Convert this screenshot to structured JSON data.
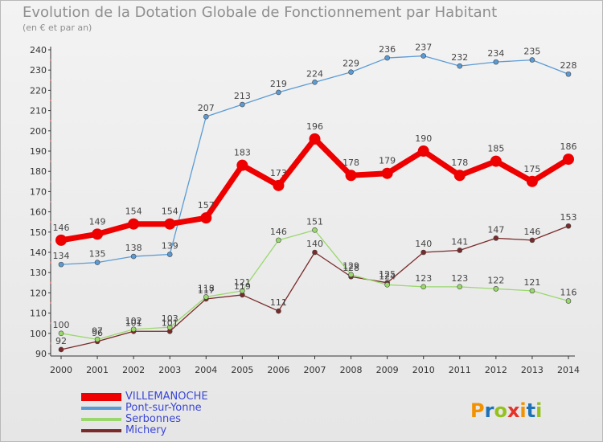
{
  "header": {
    "title": "Evolution de la Dotation Globale de Fonctionnement par Habitant",
    "subtitle": "(en € et par an)"
  },
  "logo": {
    "text": "Proxiti",
    "colors": [
      "#f39200",
      "#1d71b8",
      "#95c11f",
      "#e6332a"
    ]
  },
  "chart_data": {
    "type": "line",
    "x": [
      2000,
      2001,
      2002,
      2003,
      2004,
      2005,
      2006,
      2007,
      2008,
      2009,
      2010,
      2011,
      2012,
      2013,
      2014
    ],
    "ylim": [
      90,
      240
    ],
    "yticks": [
      90,
      100,
      110,
      120,
      130,
      140,
      150,
      160,
      170,
      180,
      190,
      200,
      210,
      220,
      230,
      240
    ],
    "grid": false,
    "legend_position": "bottom-left",
    "series": [
      {
        "name": "VILLEMANOCHE",
        "color": "#ee0000",
        "width": 7,
        "marker": 7,
        "values": [
          146,
          149,
          154,
          154,
          157,
          183,
          173,
          196,
          178,
          179,
          190,
          178,
          185,
          175,
          186
        ]
      },
      {
        "name": "Pont-sur-Yonne",
        "color": "#5b9bd5",
        "width": 1.3,
        "marker": 3,
        "values": [
          134,
          135,
          138,
          139,
          207,
          213,
          219,
          224,
          229,
          236,
          237,
          232,
          234,
          235,
          228
        ]
      },
      {
        "name": "Serbonnes",
        "color": "#9ad86e",
        "width": 1.3,
        "marker": 3,
        "values": [
          100,
          97,
          102,
          103,
          118,
          121,
          146,
          151,
          129,
          124,
          123,
          123,
          122,
          121,
          116
        ]
      },
      {
        "name": "Michery",
        "color": "#7a2a2a",
        "width": 1.3,
        "marker": 3,
        "values": [
          92,
          96,
          101,
          101,
          117,
          119,
          111,
          140,
          128,
          125,
          140,
          141,
          147,
          146,
          153
        ]
      }
    ]
  }
}
